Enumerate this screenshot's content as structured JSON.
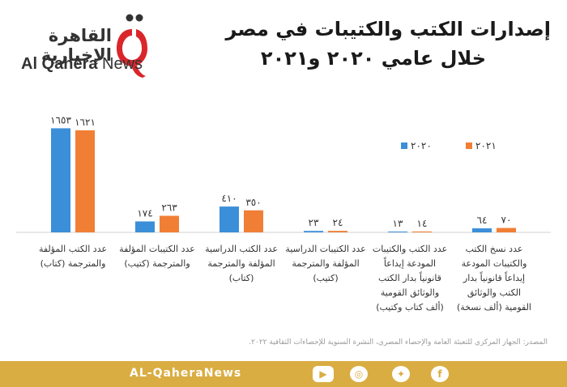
{
  "logo": {
    "arabic": "القاهرة الإخبارية",
    "latin_bold": "Al Qahera",
    "latin_light": "News"
  },
  "title": {
    "line1": "إصدارات الكتب والكتيبات في مصر",
    "line2": "خلال عامي ٢٠٢٠ و٢٠٢١"
  },
  "chart_data": {
    "type": "bar",
    "categories": [
      [
        "عدد نسخ الكتب",
        "والكتيبات المودعة",
        "إيداعاً قانونياً بدار",
        "الكتب والوثائق",
        "القومية (ألف نسخة)"
      ],
      [
        "عدد الكتب والكتيبات",
        "المودعة إيداعاً",
        "قانونياً بدار الكتب",
        "والوثائق القومية",
        "(ألف كتاب وكتيب)"
      ],
      [
        "عدد الكتيبات الدراسية",
        "المؤلفة والمترجمة",
        "(كتيب)"
      ],
      [
        "عدد الكتب الدراسية",
        "المؤلفة والمترجمة",
        "(كتاب)"
      ],
      [
        "عدد الكتيبات المؤلفة",
        "والمترجمة (كتيب)"
      ],
      [
        "عدد الكتب المؤلفة",
        "والمترجمة (كتاب)"
      ]
    ],
    "series": [
      {
        "name": "٢٠٢٠",
        "values": [
          64,
          13,
          23,
          410,
          174,
          1653
        ],
        "labels": [
          "٦٤",
          "١٣",
          "٢٣",
          "٤١٠",
          "١٧٤",
          "١٦٥٣"
        ],
        "color": "#3b8fd9"
      },
      {
        "name": "٢٠٢١",
        "values": [
          70,
          14,
          24,
          350,
          263,
          1621
        ],
        "labels": [
          "٧٠",
          "١٤",
          "٢٤",
          "٣٥٠",
          "٢٦٣",
          "١٦٢١"
        ],
        "color": "#f07f35"
      }
    ],
    "ylim": [
      0,
      1800
    ],
    "grid": false,
    "legend": "top-right"
  },
  "source": "المصدر: الجهاز المركزي للتعبئة العامة والإحصاء المصري، النشرة السنوية للإحصاءات الثقافية ٢٠٢٢.",
  "footer": {
    "text": "AL-QaheraNews",
    "icons": [
      "youtube-icon",
      "instagram-icon",
      "twitter-icon",
      "facebook-icon"
    ]
  },
  "colors": {
    "footer": "#d9ad42",
    "logo_red": "#d9262b"
  }
}
